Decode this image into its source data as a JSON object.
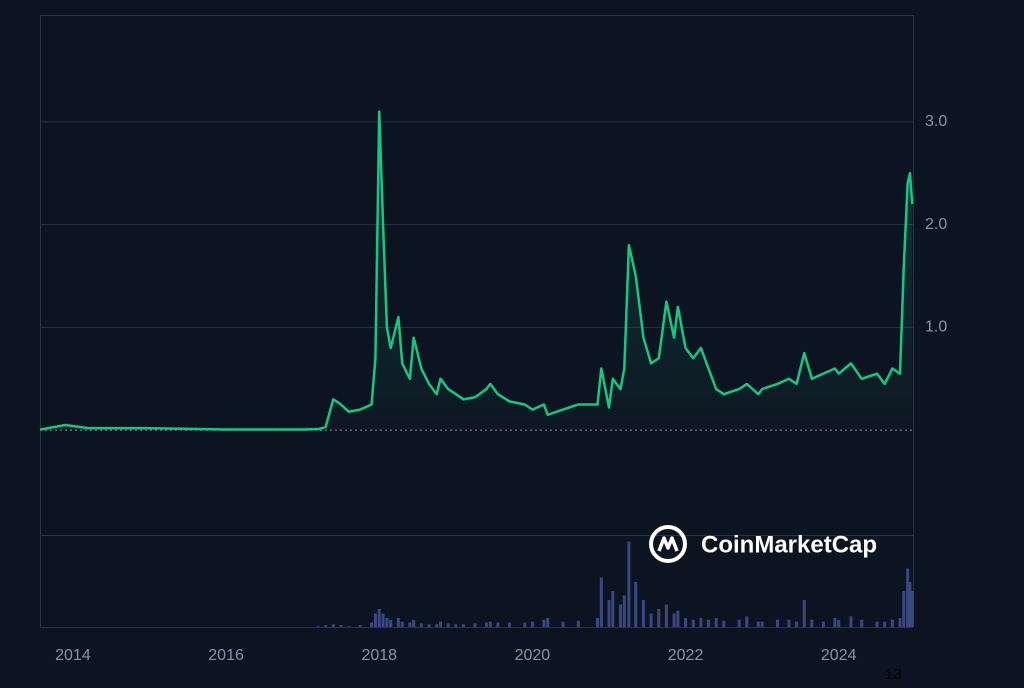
{
  "chart_data": {
    "type": "line",
    "color": "#16c784",
    "grid": true,
    "baseline": 0,
    "xlim": [
      2013.57,
      2024.97
    ],
    "xticks": [
      2014,
      2016,
      2018,
      2020,
      2022,
      2024
    ],
    "ylim": [
      -1.02,
      4.04
    ],
    "yticks": [
      {
        "value": 1,
        "label": "1.0"
      },
      {
        "value": 2,
        "label": "2.0"
      },
      {
        "value": 3,
        "label": "3.0"
      }
    ],
    "x": [
      2013.57,
      2013.9,
      2014.2,
      2014.95,
      2016.0,
      2017.0,
      2017.2,
      2017.3,
      2017.4,
      2017.5,
      2017.6,
      2017.75,
      2017.9,
      2017.95,
      2018.0,
      2018.05,
      2018.1,
      2018.15,
      2018.25,
      2018.3,
      2018.4,
      2018.45,
      2018.55,
      2018.65,
      2018.75,
      2018.8,
      2018.9,
      2019.0,
      2019.1,
      2019.25,
      2019.4,
      2019.45,
      2019.55,
      2019.7,
      2019.9,
      2020.0,
      2020.15,
      2020.2,
      2020.4,
      2020.6,
      2020.85,
      2020.9,
      2021.0,
      2021.05,
      2021.15,
      2021.2,
      2021.26,
      2021.35,
      2021.45,
      2021.55,
      2021.65,
      2021.75,
      2021.85,
      2021.9,
      2022.0,
      2022.1,
      2022.2,
      2022.3,
      2022.4,
      2022.5,
      2022.7,
      2022.8,
      2022.95,
      2023.0,
      2023.2,
      2023.35,
      2023.45,
      2023.55,
      2023.65,
      2023.8,
      2023.95,
      2024.0,
      2024.16,
      2024.3,
      2024.5,
      2024.6,
      2024.7,
      2024.8,
      2024.85,
      2024.9,
      2024.93,
      2024.96
    ],
    "values": [
      0.005,
      0.05,
      0.02,
      0.02,
      0.006,
      0.006,
      0.01,
      0.03,
      0.3,
      0.25,
      0.18,
      0.2,
      0.25,
      0.7,
      3.1,
      2.0,
      1.0,
      0.8,
      1.1,
      0.65,
      0.5,
      0.9,
      0.6,
      0.45,
      0.35,
      0.5,
      0.4,
      0.35,
      0.3,
      0.32,
      0.4,
      0.45,
      0.35,
      0.28,
      0.25,
      0.2,
      0.25,
      0.15,
      0.2,
      0.25,
      0.25,
      0.6,
      0.22,
      0.5,
      0.4,
      0.6,
      1.8,
      1.5,
      0.9,
      0.65,
      0.7,
      1.25,
      0.9,
      1.2,
      0.8,
      0.7,
      0.8,
      0.6,
      0.4,
      0.35,
      0.4,
      0.45,
      0.35,
      0.4,
      0.45,
      0.5,
      0.45,
      0.75,
      0.5,
      0.55,
      0.6,
      0.55,
      0.65,
      0.5,
      0.55,
      0.45,
      0.6,
      0.55,
      1.6,
      2.4,
      2.5,
      2.2
    ],
    "volume": {
      "color": "#3a4780",
      "y2lim": [
        0,
        100
      ],
      "values": [
        0,
        0,
        0,
        0,
        0,
        0,
        1,
        2,
        3,
        2,
        1,
        2,
        5,
        15,
        20,
        15,
        10,
        8,
        10,
        6,
        5,
        8,
        4,
        3,
        3,
        6,
        4,
        3,
        3,
        4,
        5,
        6,
        5,
        5,
        5,
        6,
        8,
        10,
        6,
        7,
        10,
        55,
        30,
        40,
        25,
        35,
        95,
        50,
        30,
        15,
        20,
        25,
        15,
        18,
        10,
        8,
        10,
        8,
        10,
        7,
        8,
        12,
        6,
        6,
        8,
        8,
        6,
        30,
        8,
        6,
        10,
        8,
        12,
        8,
        6,
        6,
        8,
        10,
        40,
        65,
        50,
        40
      ]
    },
    "watermark": "CoinMarketCap",
    "footnote": "13"
  }
}
